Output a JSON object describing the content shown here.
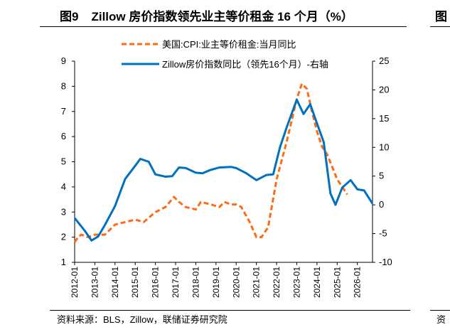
{
  "title": {
    "figure_no": "图9",
    "text": "Zillow 房价指数领先业主等价租金 16 个月（%）"
  },
  "source": "资料来源：BLS，Zillow，联储证券研究院",
  "partial_next_figure": {
    "title_glyph": "图",
    "source_glyph": "资"
  },
  "chart_data": {
    "type": "line",
    "title": "Zillow 房价指数领先业主等价租金 16 个月（%）",
    "x_unit": "months since 2012-01",
    "x_ticks": [
      "2012-01",
      "2013-01",
      "2014-01",
      "2015-01",
      "2016-01",
      "2017-01",
      "2018-01",
      "2019-01",
      "2020-01",
      "2021-01",
      "2022-01",
      "2023-01",
      "2024-01",
      "2025-01",
      "2026-01"
    ],
    "xlim_months": [
      0,
      177
    ],
    "y_left": {
      "ylim": [
        1,
        9
      ],
      "ticks": [
        "1",
        "2",
        "3",
        "4",
        "5",
        "6",
        "7",
        "8",
        "9"
      ]
    },
    "y_right": {
      "ylim": [
        -10,
        25
      ],
      "ticks": [
        "-10",
        "-5",
        "0",
        "5",
        "10",
        "15",
        "20",
        "25"
      ]
    },
    "legend_placement": "top",
    "series": [
      {
        "name": "美国:CPI:业主等价租金:当月同比",
        "axis": "left",
        "style": "dashed",
        "color": "#FF6A13",
        "points": [
          [
            0,
            1.8
          ],
          [
            2,
            2.0
          ],
          [
            4,
            2.1
          ],
          [
            8,
            2.0
          ],
          [
            12,
            2.1
          ],
          [
            18,
            2.1
          ],
          [
            24,
            2.5
          ],
          [
            30,
            2.6
          ],
          [
            36,
            2.7
          ],
          [
            41,
            2.6
          ],
          [
            48,
            3.0
          ],
          [
            54,
            3.2
          ],
          [
            59,
            3.6
          ],
          [
            62,
            3.4
          ],
          [
            66,
            3.2
          ],
          [
            72,
            3.1
          ],
          [
            75,
            3.4
          ],
          [
            81,
            3.3
          ],
          [
            86,
            3.2
          ],
          [
            89,
            3.4
          ],
          [
            93,
            3.3
          ],
          [
            96,
            3.3
          ],
          [
            99,
            3.2
          ],
          [
            104,
            2.6
          ],
          [
            108,
            2.0
          ],
          [
            111,
            2.0
          ],
          [
            115,
            2.4
          ],
          [
            120,
            4.3
          ],
          [
            126,
            5.8
          ],
          [
            132,
            7.5
          ],
          [
            135,
            8.1
          ],
          [
            138,
            7.9
          ],
          [
            141,
            7.0
          ],
          [
            144,
            6.2
          ],
          [
            147,
            5.6
          ],
          [
            150,
            5.3
          ],
          [
            153,
            4.8
          ],
          [
            156,
            4.3
          ],
          [
            159,
            4.0
          ],
          [
            162,
            3.7
          ]
        ]
      },
      {
        "name": "Zillow房价指数同比（领先16个月）-右轴",
        "axis": "right",
        "style": "solid",
        "color": "#0070C0",
        "points": [
          [
            0,
            -2.3
          ],
          [
            6,
            -4.5
          ],
          [
            10,
            -6.2
          ],
          [
            14,
            -5.5
          ],
          [
            18,
            -3.5
          ],
          [
            24,
            -0.2
          ],
          [
            30,
            4.5
          ],
          [
            36,
            6.8
          ],
          [
            39,
            8.0
          ],
          [
            44,
            7.5
          ],
          [
            48,
            5.3
          ],
          [
            54,
            4.9
          ],
          [
            58,
            5.0
          ],
          [
            62,
            6.5
          ],
          [
            66,
            6.4
          ],
          [
            72,
            5.6
          ],
          [
            76,
            5.5
          ],
          [
            80,
            6.0
          ],
          [
            86,
            6.5
          ],
          [
            93,
            6.6
          ],
          [
            96,
            6.4
          ],
          [
            102,
            5.5
          ],
          [
            108,
            4.3
          ],
          [
            114,
            5.2
          ],
          [
            118,
            5.3
          ],
          [
            122,
            10.0
          ],
          [
            126,
            13.5
          ],
          [
            132,
            18.3
          ],
          [
            136,
            15.8
          ],
          [
            140,
            17.5
          ],
          [
            143,
            15.0
          ],
          [
            148,
            10.9
          ],
          [
            152,
            2.0
          ],
          [
            155,
            0.0
          ],
          [
            159,
            3.0
          ],
          [
            164,
            4.3
          ],
          [
            168,
            2.7
          ],
          [
            172,
            2.5
          ],
          [
            177,
            0.2
          ]
        ]
      }
    ]
  }
}
